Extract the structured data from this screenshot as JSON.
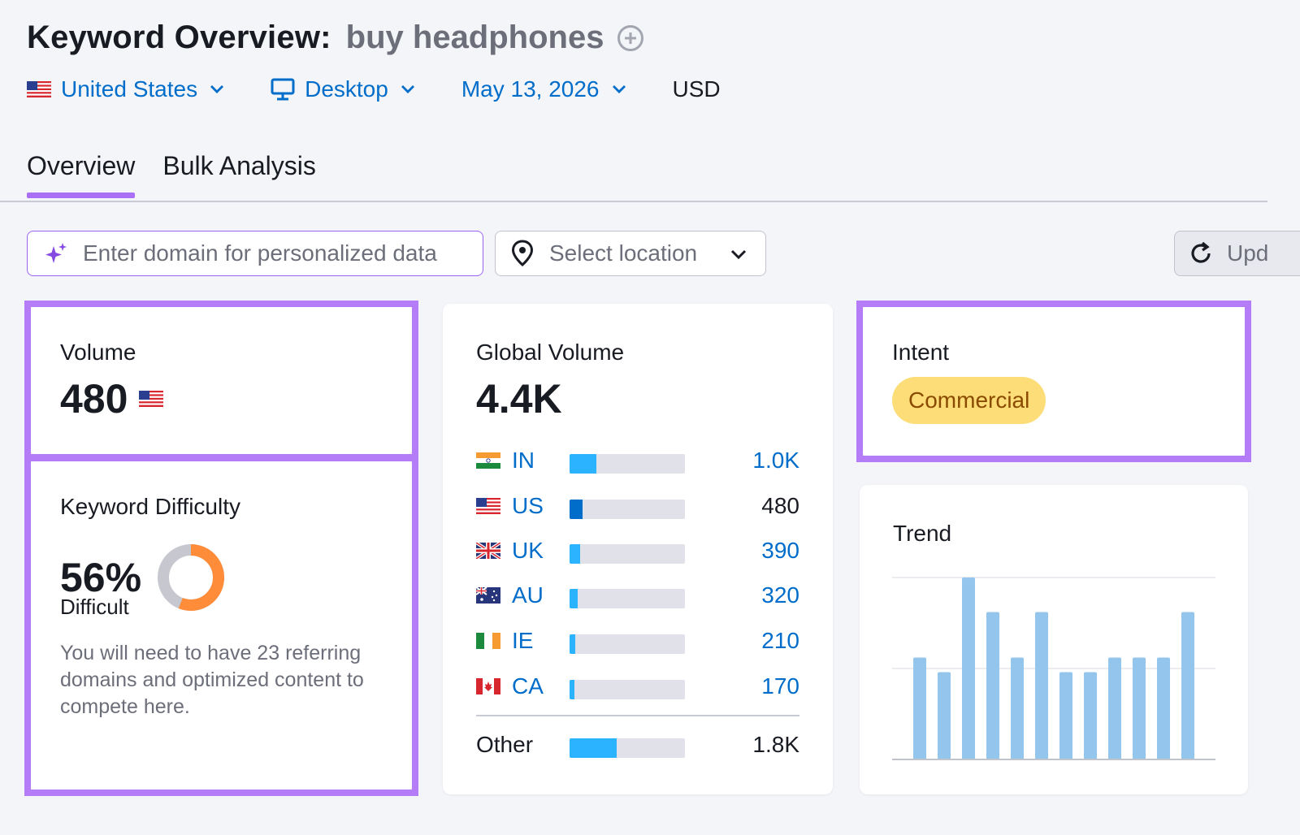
{
  "header": {
    "title": "Keyword Overview:",
    "keyword": "buy headphones"
  },
  "filters": {
    "country": "United States",
    "device": "Desktop",
    "date": "May 13, 2026",
    "currency": "USD"
  },
  "tabs": [
    {
      "label": "Overview",
      "active": true
    },
    {
      "label": "Bulk Analysis",
      "active": false
    }
  ],
  "toolbar": {
    "domain_placeholder": "Enter domain for personalized data",
    "location_placeholder": "Select location",
    "update_label": "Upd"
  },
  "volume": {
    "title": "Volume",
    "value": "480"
  },
  "keyword_difficulty": {
    "title": "Keyword Difficulty",
    "value": "56%",
    "percent": 56,
    "level": "Difficult",
    "description": "You will need to have 23 referring domains and optimized content to compete here."
  },
  "global_volume": {
    "title": "Global Volume",
    "value": "4.4K",
    "countries": [
      {
        "code": "IN",
        "value": "1.0K",
        "share": 0.23
      },
      {
        "code": "US",
        "value": "480",
        "share": 0.11
      },
      {
        "code": "UK",
        "value": "390",
        "share": 0.09
      },
      {
        "code": "AU",
        "value": "320",
        "share": 0.07
      },
      {
        "code": "IE",
        "value": "210",
        "share": 0.05
      },
      {
        "code": "CA",
        "value": "170",
        "share": 0.04
      }
    ],
    "other": {
      "label": "Other",
      "value": "1.8K",
      "share": 0.41
    }
  },
  "intent": {
    "title": "Intent",
    "badge": "Commercial"
  },
  "trend": {
    "title": "Trend"
  },
  "chart_data": {
    "type": "bar",
    "categories": [
      "1",
      "2",
      "3",
      "4",
      "5",
      "6",
      "7",
      "8",
      "9",
      "10",
      "11",
      "12"
    ],
    "values": [
      0.56,
      0.48,
      1.0,
      0.81,
      0.56,
      0.81,
      0.48,
      0.48,
      0.56,
      0.56,
      0.56,
      0.81
    ],
    "ylim": [
      0,
      1
    ],
    "grid": true
  },
  "colors": {
    "accent": "#b57cf7",
    "link": "#006dca",
    "bar_light": "#2bb3ff",
    "trend_bar": "#93c5ed",
    "kd_orange": "#ff8c38",
    "intent_bg": "#fcdd78"
  }
}
